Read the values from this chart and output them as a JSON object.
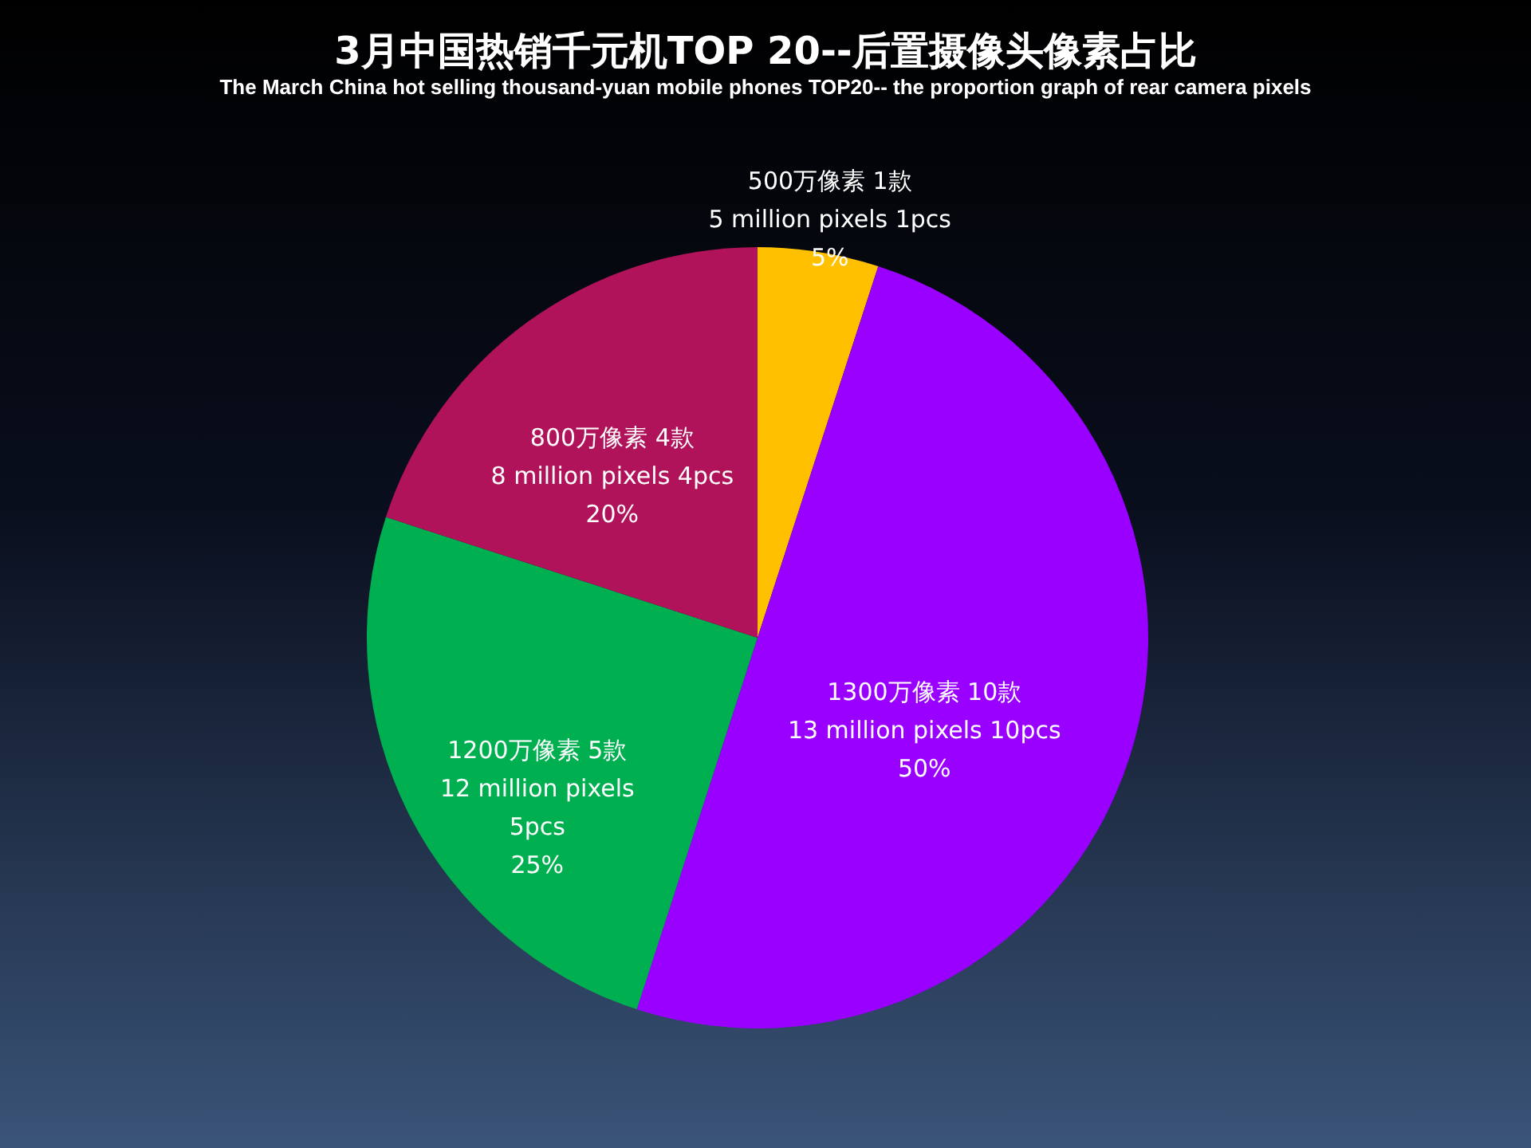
{
  "chart_data": {
    "type": "pie",
    "title": "3月中国热销千元机TOP 20--后置摄像头像素占比",
    "subtitle": "The March China hot selling thousand-yuan mobile phones TOP20-- the proportion graph of rear camera pixels",
    "categories": [
      "500万像素  1款\n5 million pixels 1pcs",
      "1300万像素 10款\n13 million pixels 10pcs",
      "1200万像素  5款\n12 million pixels\n5pcs",
      "800万像素  4款\n8 million pixels 4pcs"
    ],
    "values": [
      5,
      50,
      25,
      20
    ],
    "value_labels": [
      "5%",
      "50%",
      "25%",
      "20%"
    ],
    "colors": [
      "#ffc000",
      "#9900ff",
      "#00b050",
      "#b0135a"
    ],
    "legend": false
  }
}
